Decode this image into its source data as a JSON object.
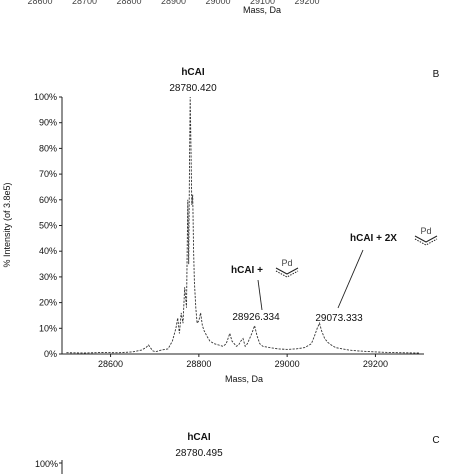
{
  "top_fragment": {
    "tick_labels": [
      "28600",
      "28700",
      "28800",
      "28900",
      "29000",
      "29100",
      "29200"
    ],
    "xlabel": "Mass, Da"
  },
  "chart_data": [
    {
      "type": "line",
      "panel_label": "B",
      "title": "",
      "xlabel": "Mass, Da",
      "ylabel": "% Intensity (of 3.8e5)",
      "xlim": [
        28490,
        29310
      ],
      "ylim": [
        0,
        100
      ],
      "xticks": [
        28600,
        28800,
        29000,
        29200
      ],
      "yticks": [
        0,
        10,
        20,
        30,
        40,
        50,
        60,
        70,
        80,
        90,
        100
      ],
      "ytick_suffix": "%",
      "grid": false,
      "x": [
        28500,
        28540,
        28580,
        28620,
        28650,
        28670,
        28680,
        28686,
        28690,
        28696,
        28702,
        28715,
        28730,
        28740,
        28748,
        28752,
        28756,
        28760,
        28764,
        28768,
        28772,
        28775,
        28777,
        28779,
        28780.4,
        28782,
        28784,
        28786,
        28788,
        28790,
        28793,
        28796,
        28800,
        28804,
        28808,
        28812,
        28818,
        28825,
        28835,
        28845,
        28855,
        28862,
        28866,
        28870,
        28875,
        28880,
        28885,
        28890,
        28895,
        28900,
        28905,
        28910,
        28915,
        28920,
        28926.3,
        28932,
        28938,
        28945,
        28960,
        28980,
        29000,
        29020,
        29040,
        29055,
        29062,
        29068,
        29073.3,
        29078,
        29085,
        29092,
        29100,
        29110,
        29125,
        29140,
        29160,
        29180,
        29200,
        29230,
        29260,
        29290,
        29300
      ],
      "y": [
        0.5,
        0.4,
        0.6,
        0.5,
        0.8,
        1.5,
        2.5,
        3.5,
        2.5,
        1.2,
        0.9,
        1.5,
        2,
        5,
        10,
        14,
        8,
        16,
        12,
        26,
        18,
        60,
        35,
        78,
        100,
        82,
        58,
        62,
        40,
        28,
        18,
        12,
        13,
        16,
        11,
        9,
        7,
        5,
        4,
        3.5,
        3,
        4,
        6,
        8,
        5,
        4,
        3,
        3.5,
        5,
        6,
        3,
        4,
        6,
        8,
        11,
        7,
        4,
        3,
        2.5,
        2,
        1.8,
        2,
        2.5,
        4,
        7,
        10,
        12,
        9,
        6,
        4.5,
        3.5,
        2.5,
        2,
        1.5,
        1.2,
        1,
        0.8,
        0.6,
        0.5,
        0.4,
        0.4
      ],
      "annotations": [
        {
          "text": "hCAI",
          "value": "28780.420"
        },
        {
          "text": "hCAI +",
          "value": "28926.334",
          "group": "Pd"
        },
        {
          "text": "hCAI + 2X",
          "value": "29073.333",
          "group": "Pd"
        }
      ]
    },
    {
      "type": "line",
      "panel_label": "C",
      "title": "",
      "xlabel": "",
      "ylabel": "",
      "yticks_visible": [
        "100%"
      ],
      "annotations": [
        {
          "text": "hCAI",
          "value": "28780.495"
        }
      ]
    }
  ]
}
